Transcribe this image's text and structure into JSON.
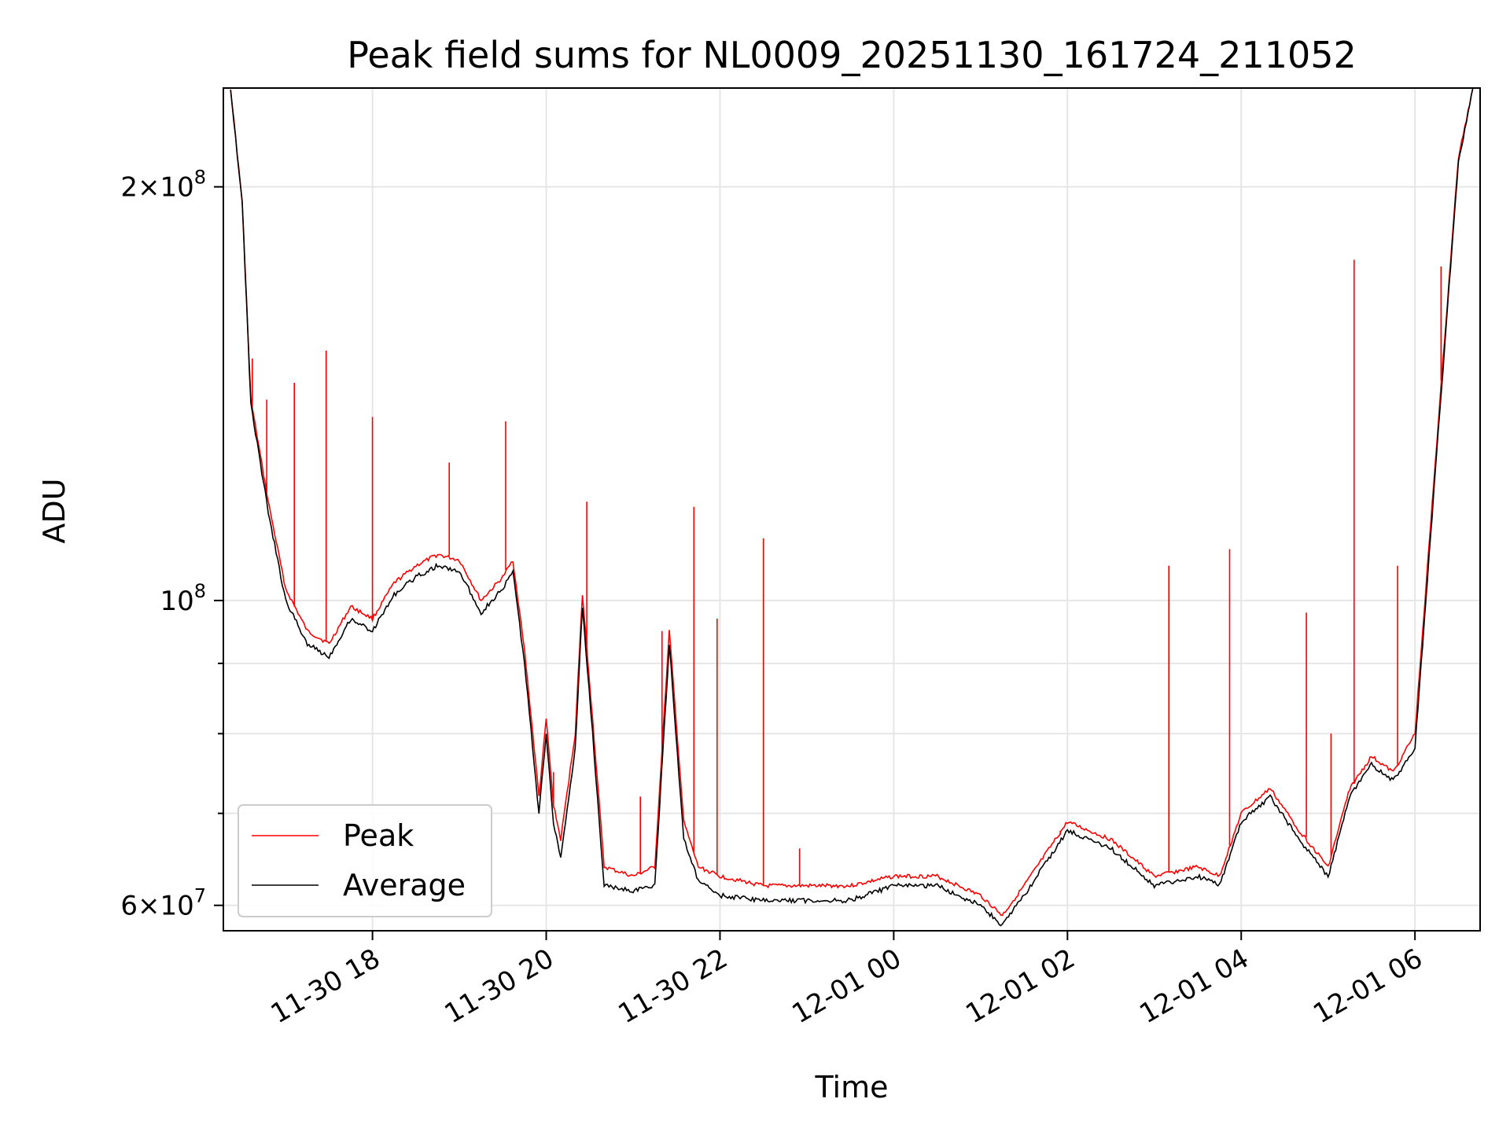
{
  "chart_data": {
    "type": "line",
    "title": "Peak field sums for NL0009_20251130_161724_211052",
    "xlabel": "Time",
    "ylabel": "ADU",
    "y_scale": "log",
    "ylim": [
      57500000,
      236000000
    ],
    "xlim": [
      "2025-11-30 16:17",
      "2025-12-01 06:45"
    ],
    "grid": true,
    "legend_position": "lower-left",
    "x_ticks": [
      {
        "t": "2025-11-30 18:00",
        "label": "11-30 18"
      },
      {
        "t": "2025-11-30 20:00",
        "label": "11-30 20"
      },
      {
        "t": "2025-11-30 22:00",
        "label": "11-30 22"
      },
      {
        "t": "2025-12-01 00:00",
        "label": "12-01 00"
      },
      {
        "t": "2025-12-01 02:00",
        "label": "12-01 02"
      },
      {
        "t": "2025-12-01 04:00",
        "label": "12-01 04"
      },
      {
        "t": "2025-12-01 06:00",
        "label": "12-01 06"
      }
    ],
    "y_major_ticks": [
      {
        "value": 60000000,
        "mantissa": "6",
        "base": "10",
        "exp": "7"
      },
      {
        "value": 100000000,
        "mantissa": "",
        "base": "10",
        "exp": "8"
      },
      {
        "value": 200000000,
        "mantissa": "2",
        "base": "10",
        "exp": "8"
      }
    ],
    "y_minor_ticks": [
      70000000,
      80000000,
      90000000
    ],
    "series": [
      {
        "name": "Peak",
        "color": "#ff0000",
        "points": [
          [
            "2025-11-30 16:22",
            236000000
          ],
          [
            "2025-11-30 16:30",
            195000000
          ],
          [
            "2025-11-30 16:36",
            140000000
          ],
          [
            "2025-11-30 16:48",
            118000000
          ],
          [
            "2025-11-30 17:00",
            102000000
          ],
          [
            "2025-11-30 17:15",
            95000000
          ],
          [
            "2025-11-30 17:30",
            93000000
          ],
          [
            "2025-11-30 17:45",
            99000000
          ],
          [
            "2025-11-30 18:00",
            97000000
          ],
          [
            "2025-11-30 18:15",
            103000000
          ],
          [
            "2025-11-30 18:30",
            106000000
          ],
          [
            "2025-11-30 18:45",
            108000000
          ],
          [
            "2025-11-30 19:00",
            107000000
          ],
          [
            "2025-11-30 19:15",
            100000000
          ],
          [
            "2025-11-30 19:30",
            104000000
          ],
          [
            "2025-11-30 19:37",
            107000000
          ],
          [
            "2025-11-30 19:45",
            92000000
          ],
          [
            "2025-11-30 19:55",
            72000000
          ],
          [
            "2025-11-30 20:00",
            82000000
          ],
          [
            "2025-11-30 20:05",
            71000000
          ],
          [
            "2025-11-30 20:10",
            67000000
          ],
          [
            "2025-11-30 20:20",
            80000000
          ],
          [
            "2025-11-30 20:25",
            101000000
          ],
          [
            "2025-11-30 20:32",
            82000000
          ],
          [
            "2025-11-30 20:40",
            64000000
          ],
          [
            "2025-11-30 21:00",
            63000000
          ],
          [
            "2025-11-30 21:15",
            64000000
          ],
          [
            "2025-11-30 21:25",
            95000000
          ],
          [
            "2025-11-30 21:35",
            69000000
          ],
          [
            "2025-11-30 21:45",
            64000000
          ],
          [
            "2025-11-30 22:00",
            63000000
          ],
          [
            "2025-11-30 22:30",
            62000000
          ],
          [
            "2025-11-30 23:00",
            62000000
          ],
          [
            "2025-11-30 23:30",
            62000000
          ],
          [
            "2025-12-01 00:00",
            63000000
          ],
          [
            "2025-12-01 00:30",
            63000000
          ],
          [
            "2025-12-01 01:00",
            61000000
          ],
          [
            "2025-12-01 01:15",
            59000000
          ],
          [
            "2025-12-01 01:30",
            62000000
          ],
          [
            "2025-12-01 02:00",
            69000000
          ],
          [
            "2025-12-01 02:30",
            67000000
          ],
          [
            "2025-12-01 03:00",
            63000000
          ],
          [
            "2025-12-01 03:30",
            64000000
          ],
          [
            "2025-12-01 03:45",
            63000000
          ],
          [
            "2025-12-01 04:00",
            70000000
          ],
          [
            "2025-12-01 04:20",
            73000000
          ],
          [
            "2025-12-01 04:40",
            68000000
          ],
          [
            "2025-12-01 05:00",
            64000000
          ],
          [
            "2025-12-01 05:15",
            73000000
          ],
          [
            "2025-12-01 05:30",
            77000000
          ],
          [
            "2025-12-01 05:45",
            75000000
          ],
          [
            "2025-12-01 06:00",
            80000000
          ],
          [
            "2025-12-01 06:15",
            130000000
          ],
          [
            "2025-12-01 06:30",
            210000000
          ],
          [
            "2025-12-01 06:40",
            236000000
          ]
        ],
        "spikes": [
          [
            "2025-11-30 16:37",
            150000000
          ],
          [
            "2025-11-30 16:47",
            140000000
          ],
          [
            "2025-11-30 17:06",
            144000000
          ],
          [
            "2025-11-30 17:28",
            152000000
          ],
          [
            "2025-11-30 18:00",
            136000000
          ],
          [
            "2025-11-30 18:53",
            126000000
          ],
          [
            "2025-11-30 19:32",
            135000000
          ],
          [
            "2025-11-30 20:05",
            75000000
          ],
          [
            "2025-11-30 20:28",
            118000000
          ],
          [
            "2025-11-30 21:05",
            72000000
          ],
          [
            "2025-11-30 21:20",
            95000000
          ],
          [
            "2025-11-30 21:42",
            117000000
          ],
          [
            "2025-11-30 21:58",
            97000000
          ],
          [
            "2025-11-30 22:30",
            111000000
          ],
          [
            "2025-11-30 22:55",
            66000000
          ],
          [
            "2025-12-01 01:55",
            68000000
          ],
          [
            "2025-12-01 03:10",
            106000000
          ],
          [
            "2025-12-01 03:52",
            109000000
          ],
          [
            "2025-12-01 04:45",
            98000000
          ],
          [
            "2025-12-01 05:02",
            80000000
          ],
          [
            "2025-12-01 05:18",
            177000000
          ],
          [
            "2025-12-01 05:48",
            106000000
          ],
          [
            "2025-12-01 06:18",
            175000000
          ]
        ]
      },
      {
        "name": "Average",
        "color": "#000000",
        "points": [
          [
            "2025-11-30 16:22",
            236000000
          ],
          [
            "2025-11-30 16:30",
            195000000
          ],
          [
            "2025-11-30 16:36",
            139000000
          ],
          [
            "2025-11-30 16:48",
            116000000
          ],
          [
            "2025-11-30 17:00",
            100000000
          ],
          [
            "2025-11-30 17:15",
            93000000
          ],
          [
            "2025-11-30 17:30",
            91000000
          ],
          [
            "2025-11-30 17:45",
            97000000
          ],
          [
            "2025-11-30 18:00",
            95000000
          ],
          [
            "2025-11-30 18:15",
            101000000
          ],
          [
            "2025-11-30 18:30",
            104000000
          ],
          [
            "2025-11-30 18:45",
            106000000
          ],
          [
            "2025-11-30 19:00",
            105000000
          ],
          [
            "2025-11-30 19:15",
            98000000
          ],
          [
            "2025-11-30 19:30",
            102000000
          ],
          [
            "2025-11-30 19:37",
            105000000
          ],
          [
            "2025-11-30 19:45",
            90000000
          ],
          [
            "2025-11-30 19:55",
            70000000
          ],
          [
            "2025-11-30 20:00",
            80000000
          ],
          [
            "2025-11-30 20:05",
            69000000
          ],
          [
            "2025-11-30 20:10",
            65000000
          ],
          [
            "2025-11-30 20:20",
            78000000
          ],
          [
            "2025-11-30 20:25",
            99000000
          ],
          [
            "2025-11-30 20:32",
            80000000
          ],
          [
            "2025-11-30 20:40",
            62000000
          ],
          [
            "2025-11-30 21:00",
            61500000
          ],
          [
            "2025-11-30 21:15",
            62000000
          ],
          [
            "2025-11-30 21:25",
            93000000
          ],
          [
            "2025-11-30 21:35",
            67000000
          ],
          [
            "2025-11-30 21:45",
            62500000
          ],
          [
            "2025-11-30 22:00",
            61000000
          ],
          [
            "2025-11-30 22:30",
            60500000
          ],
          [
            "2025-11-30 23:00",
            60500000
          ],
          [
            "2025-11-30 23:30",
            60500000
          ],
          [
            "2025-12-01 00:00",
            62000000
          ],
          [
            "2025-12-01 00:30",
            62000000
          ],
          [
            "2025-12-01 01:00",
            60000000
          ],
          [
            "2025-12-01 01:15",
            58000000
          ],
          [
            "2025-12-01 01:30",
            61000000
          ],
          [
            "2025-12-01 02:00",
            68000000
          ],
          [
            "2025-12-01 02:30",
            66000000
          ],
          [
            "2025-12-01 03:00",
            62000000
          ],
          [
            "2025-12-01 03:30",
            63000000
          ],
          [
            "2025-12-01 03:45",
            62000000
          ],
          [
            "2025-12-01 04:00",
            69000000
          ],
          [
            "2025-12-01 04:20",
            72000000
          ],
          [
            "2025-12-01 04:40",
            67000000
          ],
          [
            "2025-12-01 05:00",
            63000000
          ],
          [
            "2025-12-01 05:15",
            72000000
          ],
          [
            "2025-12-01 05:30",
            76000000
          ],
          [
            "2025-12-01 05:45",
            74000000
          ],
          [
            "2025-12-01 06:00",
            78000000
          ],
          [
            "2025-12-01 06:15",
            128000000
          ],
          [
            "2025-12-01 06:30",
            208000000
          ],
          [
            "2025-12-01 06:40",
            236000000
          ]
        ]
      }
    ]
  }
}
